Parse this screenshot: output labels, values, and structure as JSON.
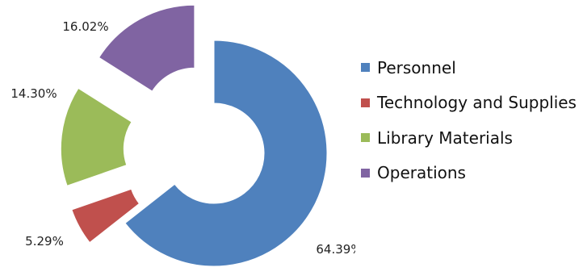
{
  "chart_data": {
    "type": "pie",
    "donut": true,
    "exploded": true,
    "legend_position": "right",
    "slices": [
      {
        "label": "Personnel",
        "value": 64.39,
        "value_label": "64.39%",
        "color": "#4F81BD"
      },
      {
        "label": "Technology and Supplies",
        "value": 5.29,
        "value_label": "5.29%",
        "color": "#C0504D"
      },
      {
        "label": "Library Materials",
        "value": 14.3,
        "value_label": "14.30%",
        "color": "#9BBB59"
      },
      {
        "label": "Operations",
        "value": 16.02,
        "value_label": "16.02%",
        "color": "#8064A2"
      }
    ]
  }
}
